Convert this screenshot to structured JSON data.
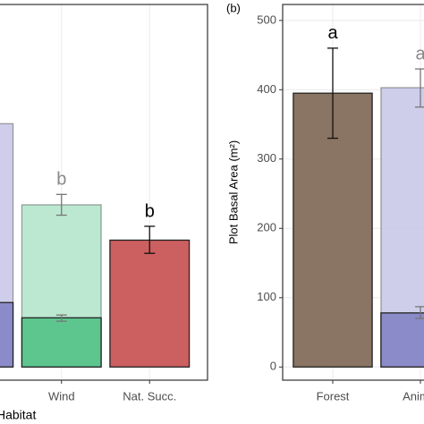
{
  "chart_data": [
    {
      "type": "bar",
      "x_label": "Habitat",
      "categories": [
        null,
        "Wind",
        "Nat. Succ."
      ],
      "ylim": [
        -19,
        523
      ],
      "grid": true,
      "series": [
        {
          "colors": [
            "#c9c9e9",
            "#b5e5cd",
            "#cc5f60"
          ],
          "values": [
            351,
            234,
            183
          ],
          "err_low": [
            null,
            219,
            164
          ],
          "err_high": [
            null,
            249,
            203
          ]
        },
        {
          "colors": [
            "#8b8bca",
            "#5dc58e",
            null
          ],
          "values": [
            93,
            71,
            null
          ],
          "err_low": [
            null,
            66,
            null
          ],
          "err_high": [
            null,
            75,
            null
          ]
        }
      ],
      "letters": [
        null,
        "b",
        "b"
      ],
      "letter_colors": [
        null,
        "#888888",
        "#000000"
      ]
    },
    {
      "type": "bar",
      "panel_label": "(b)",
      "y_label": "Plot Basal Area (m²)",
      "categories": [
        "Forest",
        "Animal"
      ],
      "ylim": [
        -19,
        523
      ],
      "yticks": [
        0,
        100,
        200,
        300,
        400,
        500
      ],
      "grid": true,
      "series": [
        {
          "colors": [
            "#8a7463",
            "#c9c9e9"
          ],
          "values": [
            395,
            403
          ],
          "err_low": [
            330,
            375
          ],
          "err_high": [
            460,
            430
          ]
        },
        {
          "colors": [
            null,
            "#8b8bca"
          ],
          "values": [
            null,
            78
          ],
          "err_low": [
            null,
            70
          ],
          "err_high": [
            null,
            87
          ]
        }
      ],
      "letters": [
        "a",
        "a"
      ],
      "letter_colors": [
        "#000000",
        "#888888"
      ]
    }
  ]
}
